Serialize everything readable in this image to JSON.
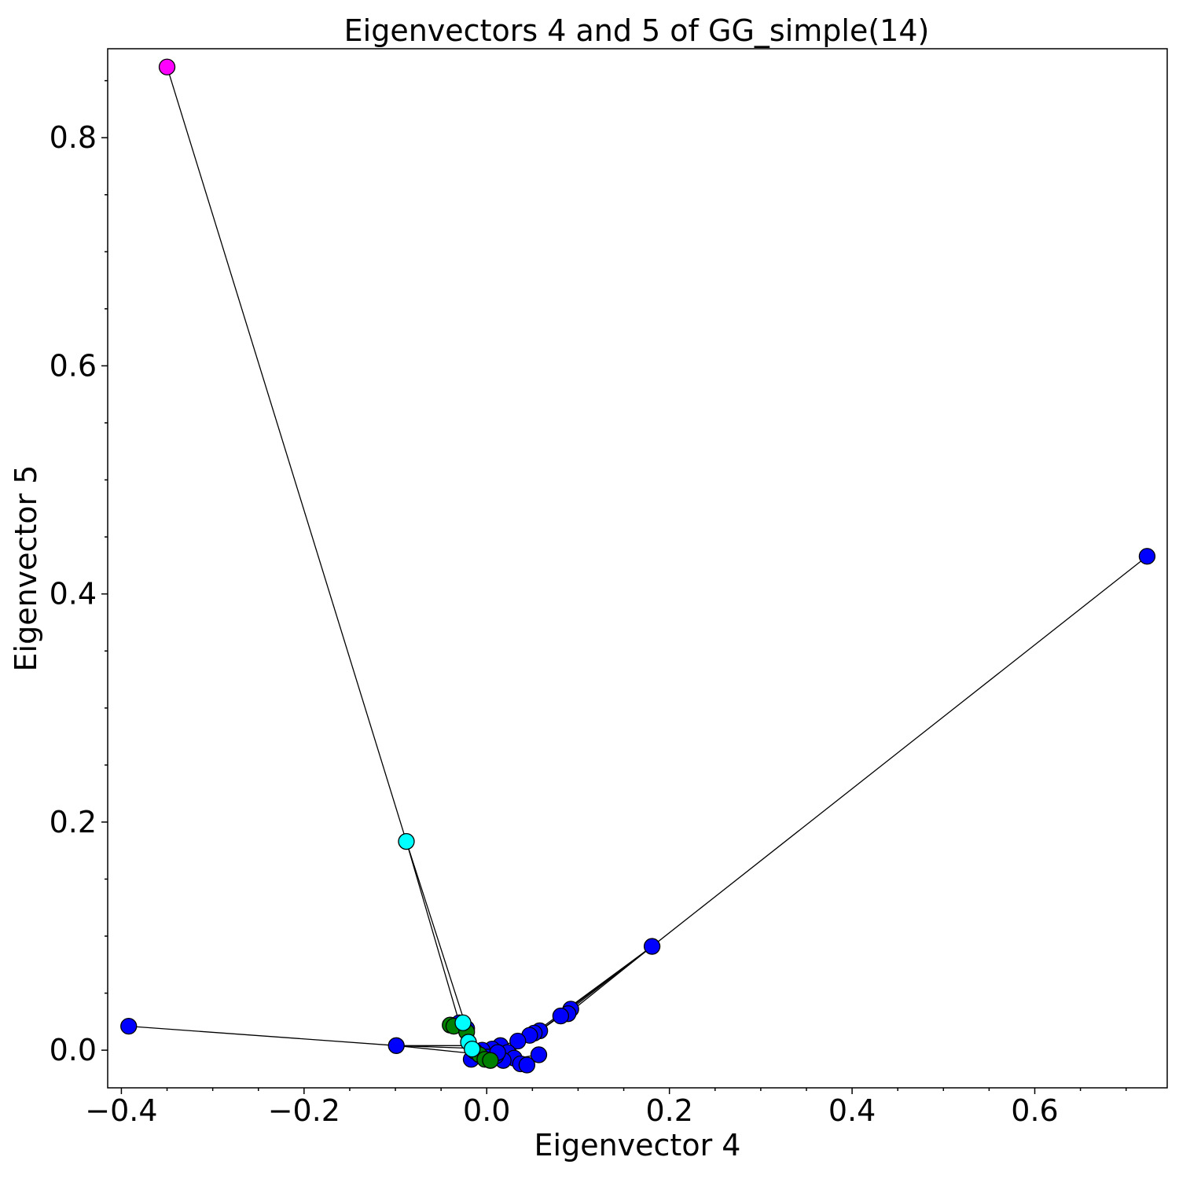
{
  "chart_data": {
    "type": "scatter",
    "title": "Eigenvectors 4 and 5 of GG_simple(14)",
    "xlabel": "Eigenvector 4",
    "ylabel": "Eigenvector 5",
    "xlim": [
      -0.415,
      0.745
    ],
    "ylim": [
      -0.033,
      0.878
    ],
    "xticks": [
      -0.4,
      -0.2,
      0.0,
      0.2,
      0.4,
      0.6
    ],
    "xtick_labels": [
      "−0.4",
      "−0.2",
      "0.0",
      "0.2",
      "0.4",
      "0.6"
    ],
    "yticks": [
      0.0,
      0.2,
      0.4,
      0.6,
      0.8
    ],
    "ytick_labels": [
      "0.0",
      "0.2",
      "0.4",
      "0.6",
      "0.8"
    ],
    "xminor_step": 0.05,
    "yminor_step": 0.05,
    "grid": false,
    "colors": {
      "blue": "#0000ff",
      "green": "#008000",
      "cyan": "#00ffff",
      "magenta": "#ff00ff",
      "edge": "#000000"
    },
    "nodes": [
      {
        "x": -0.35,
        "y": 0.862,
        "color": "magenta"
      },
      {
        "x": -0.088,
        "y": 0.183,
        "color": "cyan"
      },
      {
        "x": 0.723,
        "y": 0.433,
        "color": "blue"
      },
      {
        "x": 0.181,
        "y": 0.091,
        "color": "blue"
      },
      {
        "x": -0.392,
        "y": 0.021,
        "color": "blue"
      },
      {
        "x": -0.099,
        "y": 0.004,
        "color": "blue"
      },
      {
        "x": 0.092,
        "y": 0.036,
        "color": "blue"
      },
      {
        "x": 0.089,
        "y": 0.032,
        "color": "blue"
      },
      {
        "x": 0.081,
        "y": 0.03,
        "color": "blue"
      },
      {
        "x": 0.058,
        "y": 0.017,
        "color": "blue"
      },
      {
        "x": 0.052,
        "y": 0.015,
        "color": "blue"
      },
      {
        "x": 0.047,
        "y": 0.013,
        "color": "blue"
      },
      {
        "x": 0.034,
        "y": 0.008,
        "color": "blue"
      },
      {
        "x": 0.015,
        "y": 0.004,
        "color": "blue"
      },
      {
        "x": 0.006,
        "y": 0.001,
        "color": "blue"
      },
      {
        "x": 0.023,
        "y": -0.002,
        "color": "blue"
      },
      {
        "x": 0.03,
        "y": -0.007,
        "color": "blue"
      },
      {
        "x": 0.037,
        "y": -0.012,
        "color": "blue"
      },
      {
        "x": 0.044,
        "y": -0.013,
        "color": "blue"
      },
      {
        "x": 0.057,
        "y": -0.004,
        "color": "blue"
      },
      {
        "x": 0.018,
        "y": -0.009,
        "color": "blue"
      },
      {
        "x": 0.01,
        "y": -0.005,
        "color": "blue"
      },
      {
        "x": -0.017,
        "y": -0.008,
        "color": "blue"
      },
      {
        "x": -0.022,
        "y": 0.019,
        "color": "blue"
      },
      {
        "x": -0.03,
        "y": 0.024,
        "color": "blue"
      },
      {
        "x": -0.005,
        "y": 0.0,
        "color": "blue"
      },
      {
        "x": 0.001,
        "y": -0.006,
        "color": "blue"
      },
      {
        "x": 0.012,
        "y": -0.002,
        "color": "blue"
      },
      {
        "x": -0.04,
        "y": 0.022,
        "color": "green"
      },
      {
        "x": -0.036,
        "y": 0.021,
        "color": "green"
      },
      {
        "x": -0.022,
        "y": 0.016,
        "color": "green"
      },
      {
        "x": -0.013,
        "y": -0.001,
        "color": "green"
      },
      {
        "x": -0.008,
        "y": -0.004,
        "color": "green"
      },
      {
        "x": -0.002,
        "y": -0.008,
        "color": "green"
      },
      {
        "x": 0.004,
        "y": -0.009,
        "color": "green"
      },
      {
        "x": -0.026,
        "y": 0.024,
        "color": "cyan"
      },
      {
        "x": -0.02,
        "y": 0.007,
        "color": "cyan"
      },
      {
        "x": -0.016,
        "y": 0.001,
        "color": "cyan"
      }
    ],
    "edges": [
      [
        0,
        1
      ],
      [
        1,
        23
      ],
      [
        1,
        24
      ],
      [
        2,
        3
      ],
      [
        3,
        6
      ],
      [
        3,
        7
      ],
      [
        3,
        9
      ],
      [
        3,
        10
      ],
      [
        4,
        5
      ],
      [
        5,
        13
      ],
      [
        5,
        14
      ],
      [
        5,
        21
      ],
      [
        6,
        8
      ],
      [
        8,
        9
      ],
      [
        9,
        11
      ],
      [
        11,
        12
      ],
      [
        12,
        13
      ],
      [
        13,
        14
      ],
      [
        14,
        15
      ],
      [
        15,
        16
      ],
      [
        16,
        17
      ],
      [
        17,
        18
      ],
      [
        18,
        19
      ],
      [
        19,
        20
      ],
      [
        20,
        21
      ],
      [
        21,
        22
      ],
      [
        22,
        23
      ],
      [
        23,
        24
      ],
      [
        24,
        28
      ],
      [
        28,
        29
      ],
      [
        29,
        30
      ],
      [
        30,
        31
      ],
      [
        31,
        32
      ],
      [
        32,
        33
      ],
      [
        33,
        34
      ],
      [
        35,
        36
      ],
      [
        36,
        37
      ],
      [
        37,
        25
      ],
      [
        25,
        26
      ],
      [
        26,
        27
      ],
      [
        27,
        15
      ],
      [
        12,
        16
      ],
      [
        10,
        12
      ]
    ]
  }
}
